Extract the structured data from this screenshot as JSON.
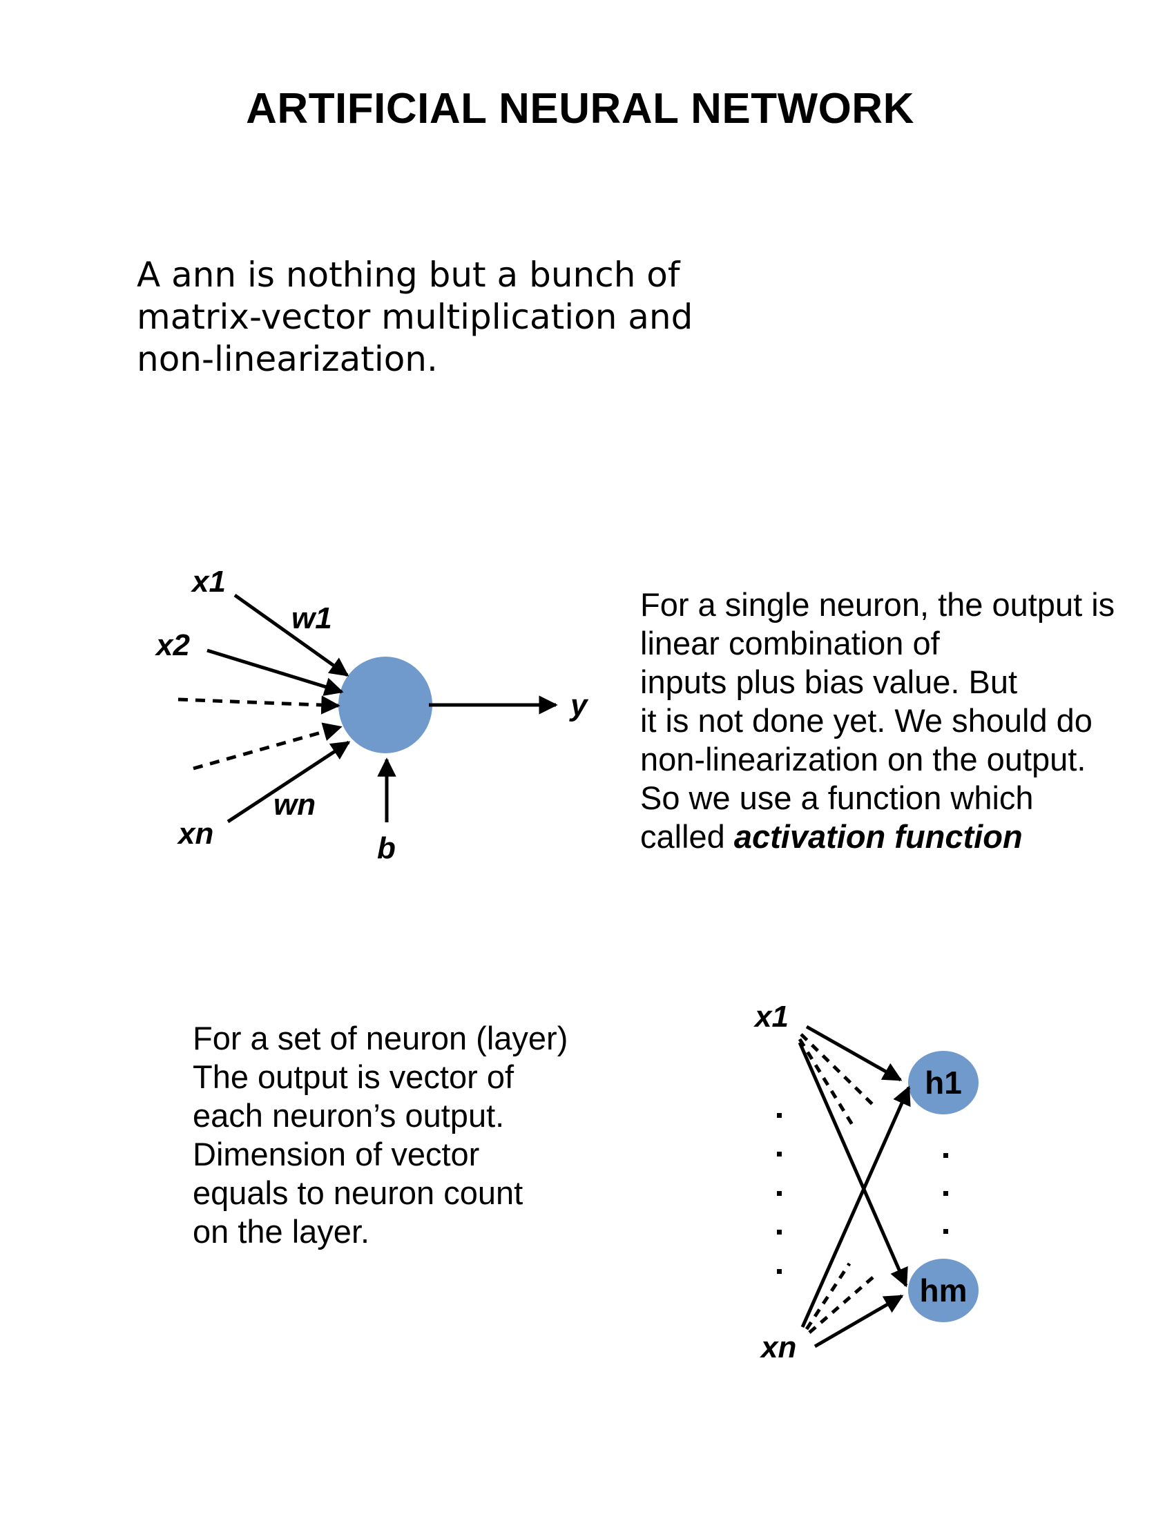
{
  "title": "ARTIFICIAL NEURAL NETWORK",
  "intro": {
    "lines": [
      "A ann is nothing but a bunch of",
      "matrix-vector multiplication and",
      "non-linearization."
    ]
  },
  "single_neuron": {
    "labels": {
      "x1": "x1",
      "x2": "x2",
      "xn": "xn",
      "w1": "w1",
      "wn": "wn",
      "y": "y",
      "b": "b"
    },
    "node_color": "#7099CC",
    "text_lines": [
      "For a single neuron, the output is",
      "linear combination of",
      "inputs plus bias value. But",
      "it is not done yet. We should do",
      "non-linearization on the output.",
      "So we use a function which"
    ],
    "last_line_prefix": "called ",
    "last_line_emphasis": "activation function"
  },
  "layer": {
    "text_lines": [
      "For a set of neuron (layer)",
      "The output is vector of",
      "each neuron’s output.",
      "Dimension of vector",
      "equals to neuron count",
      "on the layer."
    ],
    "labels": {
      "x1": "x1",
      "xn": "xn",
      "h1": "h1",
      "hm": "hm"
    },
    "node_color": "#7099CC"
  }
}
